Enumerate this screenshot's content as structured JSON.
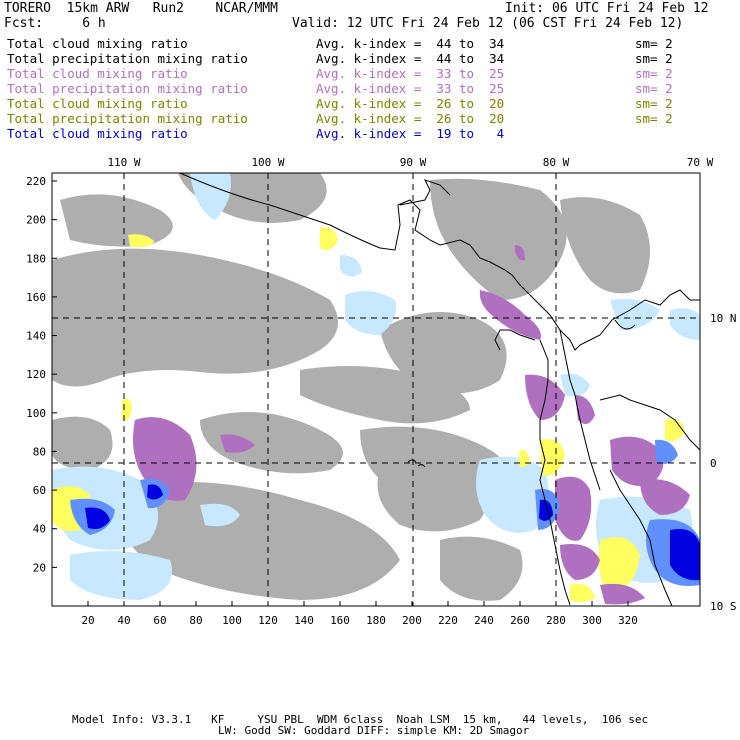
{
  "header": {
    "line1_left": "TORERO  15km ARW   Run2    NCAR/MMM",
    "line1_right": "Init: 06 UTC Fri 24 Feb 12",
    "line2_left": "Fcst:     6 h",
    "line2_right": "Valid: 12 UTC Fri 24 Feb 12 (06 CST Fri 24 Feb 12)"
  },
  "legend": [
    {
      "field": "Total cloud mixing ratio",
      "index": "Avg. k-index =  44 to  34",
      "sm": "sm= 2",
      "color": "#000000"
    },
    {
      "field": "Total precipitation mixing ratio",
      "index": "Avg. k-index =  44 to  34",
      "sm": "sm= 2",
      "color": "#000000"
    },
    {
      "field": "Total cloud mixing ratio",
      "index": "Avg. k-index =  33 to  25",
      "sm": "sm= 2",
      "color": "#b070c0"
    },
    {
      "field": "Total precipitation mixing ratio",
      "index": "Avg. k-index =  33 to  25",
      "sm": "sm= 2",
      "color": "#b070c0"
    },
    {
      "field": "Total cloud mixing ratio",
      "index": "Avg. k-index =  26 to  20",
      "sm": "sm= 2",
      "color": "#808000"
    },
    {
      "field": "Total precipitation mixing ratio",
      "index": "Avg. k-index =  26 to  20",
      "sm": "sm= 2",
      "color": "#808000"
    },
    {
      "field": "Total cloud mixing ratio",
      "index": "Avg. k-index =  19 to   4",
      "sm": "",
      "color": "#0000cc"
    }
  ],
  "map": {
    "top_longitudes": [
      "110 W",
      "100 W",
      "90 W",
      "80 W",
      "70 W"
    ],
    "right_latitudes": [
      "10 N",
      "0",
      "10 S"
    ],
    "y_ticks": [
      "220",
      "200",
      "180",
      "160",
      "140",
      "120",
      "100",
      "80",
      "60",
      "40",
      "20"
    ],
    "x_ticks": [
      "20",
      "40",
      "60",
      "80",
      "100",
      "120",
      "140",
      "160",
      "180",
      "200",
      "220",
      "240",
      "260",
      "280",
      "300",
      "320"
    ],
    "colors": {
      "cloud_gray": "#a0a0a0",
      "purple": "#b070c0",
      "yellow": "#ffff60",
      "light_blue": "#c8e8ff",
      "mid_blue": "#6090ff",
      "dark_blue": "#0000e0"
    }
  },
  "footer": {
    "line1": "Model Info: V3.3.1   KF     YSU PBL  WDM 6class  Noah LSM  15 km,   44 levels,  106 sec",
    "line2": "LW: Godd SW: Goddard DIFF: simple KM: 2D Smagor"
  }
}
